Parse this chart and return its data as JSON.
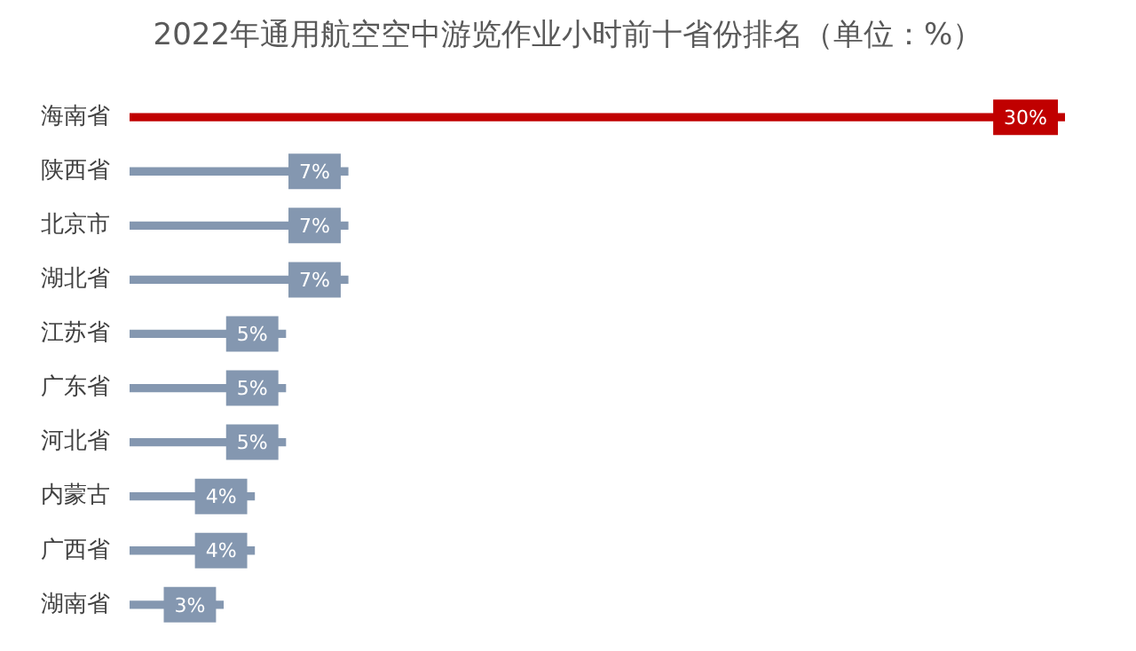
{
  "chart_data": {
    "type": "bar",
    "orientation": "horizontal",
    "title": "2022年通用航空空中游览作业小时前十省份排名（单位：%）",
    "categories": [
      "海南省",
      "陕西省",
      "北京市",
      "湖北省",
      "江苏省",
      "广东省",
      "河北省",
      "内蒙古",
      "广西省",
      "湖南省"
    ],
    "values": [
      30,
      7,
      7,
      7,
      5,
      5,
      5,
      4,
      4,
      3
    ],
    "colors": [
      "#c00000",
      "#8497b0",
      "#8497b0",
      "#8497b0",
      "#8497b0",
      "#8497b0",
      "#8497b0",
      "#8497b0",
      "#8497b0",
      "#8497b0"
    ],
    "value_labels": [
      "30%",
      "7%",
      "7%",
      "7%",
      "5%",
      "5%",
      "5%",
      "4%",
      "4%",
      "3%"
    ],
    "legend": false
  }
}
